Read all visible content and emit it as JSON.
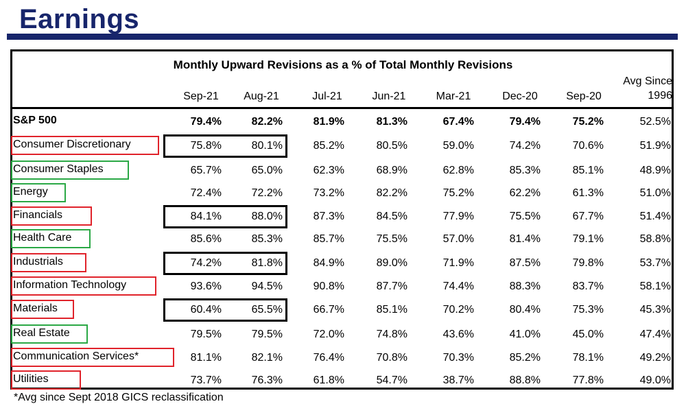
{
  "title": "Earnings",
  "table": {
    "caption": "Monthly Upward Revisions as a % of Total Monthly Revisions",
    "columns": [
      "Sep-21",
      "Aug-21",
      "Jul-21",
      "Jun-21",
      "Mar-21",
      "Dec-20",
      "Sep-20"
    ],
    "avg_header_line1": "Avg Since",
    "avg_header_line2": "1996",
    "rows": [
      {
        "label": "S&P 500",
        "values": [
          "79.4%",
          "82.2%",
          "81.9%",
          "81.3%",
          "67.4%",
          "79.4%",
          "75.2%",
          "52.5%"
        ],
        "highlight": "none"
      },
      {
        "label": "Consumer Discretionary",
        "values": [
          "75.8%",
          "80.1%",
          "85.2%",
          "80.5%",
          "59.0%",
          "74.2%",
          "70.6%",
          "51.9%"
        ],
        "highlight": "red"
      },
      {
        "label": "Consumer Staples",
        "values": [
          "65.7%",
          "65.0%",
          "62.3%",
          "68.9%",
          "62.8%",
          "85.3%",
          "85.1%",
          "48.9%"
        ],
        "highlight": "green"
      },
      {
        "label": "Energy",
        "values": [
          "72.4%",
          "72.2%",
          "73.2%",
          "82.2%",
          "75.2%",
          "62.2%",
          "61.3%",
          "51.0%"
        ],
        "highlight": "green"
      },
      {
        "label": "Financials",
        "values": [
          "84.1%",
          "88.0%",
          "87.3%",
          "84.5%",
          "77.9%",
          "75.5%",
          "67.7%",
          "51.4%"
        ],
        "highlight": "red"
      },
      {
        "label": "Health Care",
        "values": [
          "85.6%",
          "85.3%",
          "85.7%",
          "75.5%",
          "57.0%",
          "81.4%",
          "79.1%",
          "58.8%"
        ],
        "highlight": "green"
      },
      {
        "label": "Industrials",
        "values": [
          "74.2%",
          "81.8%",
          "84.9%",
          "89.0%",
          "71.9%",
          "87.5%",
          "79.8%",
          "53.7%"
        ],
        "highlight": "red"
      },
      {
        "label": "Information Technology",
        "values": [
          "93.6%",
          "94.5%",
          "90.8%",
          "87.7%",
          "74.4%",
          "88.3%",
          "83.7%",
          "58.1%"
        ],
        "highlight": "red"
      },
      {
        "label": "Materials",
        "values": [
          "60.4%",
          "65.5%",
          "66.7%",
          "85.1%",
          "70.2%",
          "80.4%",
          "75.3%",
          "45.3%"
        ],
        "highlight": "red"
      },
      {
        "label": "Real Estate",
        "values": [
          "79.5%",
          "79.5%",
          "72.0%",
          "74.8%",
          "43.6%",
          "41.0%",
          "45.0%",
          "47.4%"
        ],
        "highlight": "green"
      },
      {
        "label": "Communication Services*",
        "values": [
          "81.1%",
          "82.1%",
          "76.4%",
          "70.8%",
          "70.3%",
          "85.2%",
          "78.1%",
          "49.2%"
        ],
        "highlight": "red"
      },
      {
        "label": "Utilities",
        "values": [
          "73.7%",
          "76.3%",
          "61.8%",
          "54.7%",
          "38.7%",
          "88.8%",
          "77.8%",
          "49.0%"
        ],
        "highlight": "red"
      }
    ],
    "boxed_rows": [
      "Consumer Discretionary",
      "Financials",
      "Industrials",
      "Materials"
    ]
  },
  "footnote": "*Avg since Sept 2018 GICS reclassification",
  "colors": {
    "title": "#17256b",
    "red_box": "#e0222a",
    "green_box": "#2aa845"
  }
}
